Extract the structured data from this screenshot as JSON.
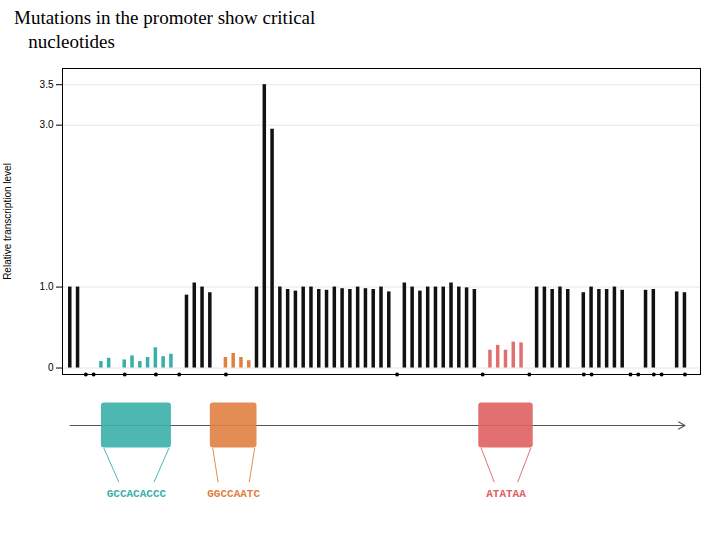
{
  "chart_data": {
    "type": "bar",
    "title": "Mutations in the promoter show critical\n   nucleotides",
    "ylabel": "Relative transcription level",
    "x": [
      1,
      2,
      3,
      4,
      5,
      6,
      7,
      8,
      9,
      10,
      11,
      12,
      13,
      14,
      15,
      16,
      17,
      18,
      19,
      20,
      21,
      22,
      23,
      24,
      25,
      26,
      27,
      28,
      29,
      30,
      31,
      32,
      33,
      34,
      35,
      36,
      37,
      38,
      39,
      40,
      41,
      42,
      43,
      44,
      45,
      46,
      47,
      48,
      49,
      50,
      51,
      52,
      53,
      54,
      55,
      56,
      57,
      58,
      59,
      60,
      61,
      62,
      63,
      64,
      65,
      66,
      67,
      68,
      69,
      70,
      71,
      72,
      73,
      74,
      75,
      76,
      77,
      78,
      79,
      80
    ],
    "values": [
      1.0,
      1.0,
      0.0,
      0.0,
      0.08,
      0.12,
      0.0,
      0.1,
      0.15,
      0.08,
      0.13,
      0.25,
      0.14,
      0.17,
      0.0,
      0.9,
      1.05,
      1.0,
      0.93,
      0.0,
      0.13,
      0.18,
      0.13,
      0.09,
      1.0,
      3.5,
      2.95,
      1.0,
      0.97,
      0.95,
      1.0,
      1.0,
      0.97,
      0.96,
      1.0,
      0.98,
      0.97,
      1.0,
      0.98,
      0.97,
      1.0,
      0.94,
      0.0,
      1.05,
      1.0,
      0.95,
      1.0,
      1.0,
      1.0,
      1.05,
      1.0,
      0.99,
      0.97,
      0.0,
      0.22,
      0.28,
      0.22,
      0.32,
      0.31,
      0.0,
      1.0,
      1.0,
      0.97,
      1.0,
      0.97,
      0.0,
      0.93,
      1.0,
      0.97,
      0.97,
      1.0,
      0.96,
      0.0,
      0.0,
      0.96,
      0.97,
      0.0,
      0.0,
      0.94,
      0.93
    ],
    "colors": [
      "#111111",
      "#111111",
      "#111111",
      "#111111",
      "#3aafa9",
      "#3aafa9",
      "#3aafa9",
      "#3aafa9",
      "#3aafa9",
      "#3aafa9",
      "#3aafa9",
      "#3aafa9",
      "#3aafa9",
      "#3aafa9",
      "#111111",
      "#111111",
      "#111111",
      "#111111",
      "#111111",
      "#111111",
      "#e08040",
      "#e08040",
      "#e08040",
      "#e08040",
      "#111111",
      "#111111",
      "#111111",
      "#111111",
      "#111111",
      "#111111",
      "#111111",
      "#111111",
      "#111111",
      "#111111",
      "#111111",
      "#111111",
      "#111111",
      "#111111",
      "#111111",
      "#111111",
      "#111111",
      "#111111",
      "#111111",
      "#111111",
      "#111111",
      "#111111",
      "#111111",
      "#111111",
      "#111111",
      "#111111",
      "#111111",
      "#111111",
      "#111111",
      "#111111",
      "#e07070",
      "#e07070",
      "#e07070",
      "#e07070",
      "#e07070",
      "#111111",
      "#111111",
      "#111111",
      "#111111",
      "#111111",
      "#111111",
      "#111111",
      "#111111",
      "#111111",
      "#111111",
      "#111111",
      "#111111",
      "#111111",
      "#111111",
      "#111111",
      "#111111",
      "#111111",
      "#111111",
      "#111111",
      "#111111",
      "#111111"
    ],
    "xlim": [
      0,
      82
    ],
    "ylim": [
      -0.08,
      3.7
    ],
    "yticks": [
      0,
      {
        "value": 1,
        "label": "1.0"
      },
      {
        "value": 3,
        "label": "3.0"
      },
      3.5
    ],
    "grid": true,
    "tick_labels": "y",
    "dots": [
      3,
      4,
      8,
      12,
      15,
      21,
      43,
      54,
      60,
      67,
      68,
      73,
      74,
      76,
      77,
      80
    ],
    "annotations": [
      {
        "text": "GCCACACCC",
        "color": "#3aafa9",
        "x": 9.5,
        "width": 9
      },
      {
        "text": "GGCCAATC",
        "color": "#e08040",
        "x": 22,
        "width": 6
      },
      {
        "text": "ATATAA",
        "color": "#e06060",
        "x": 57,
        "width": 7
      }
    ]
  }
}
